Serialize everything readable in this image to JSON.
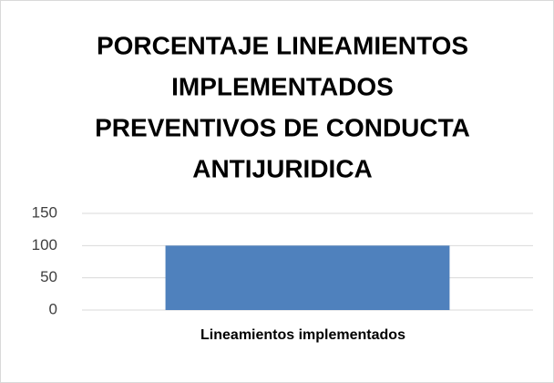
{
  "chart_data": {
    "type": "bar",
    "title": [
      "PORCENTAJE LINEAMIENTOS",
      "IMPLEMENTADOS",
      "PREVENTIVOS DE CONDUCTA",
      "ANTIJURIDICA"
    ],
    "categories": [
      "Lineamientos implementados"
    ],
    "values": [
      100
    ],
    "color": "#4f81bd",
    "ylim": [
      0,
      150
    ],
    "yticks": [
      0,
      50,
      100,
      150
    ],
    "grid": true
  }
}
